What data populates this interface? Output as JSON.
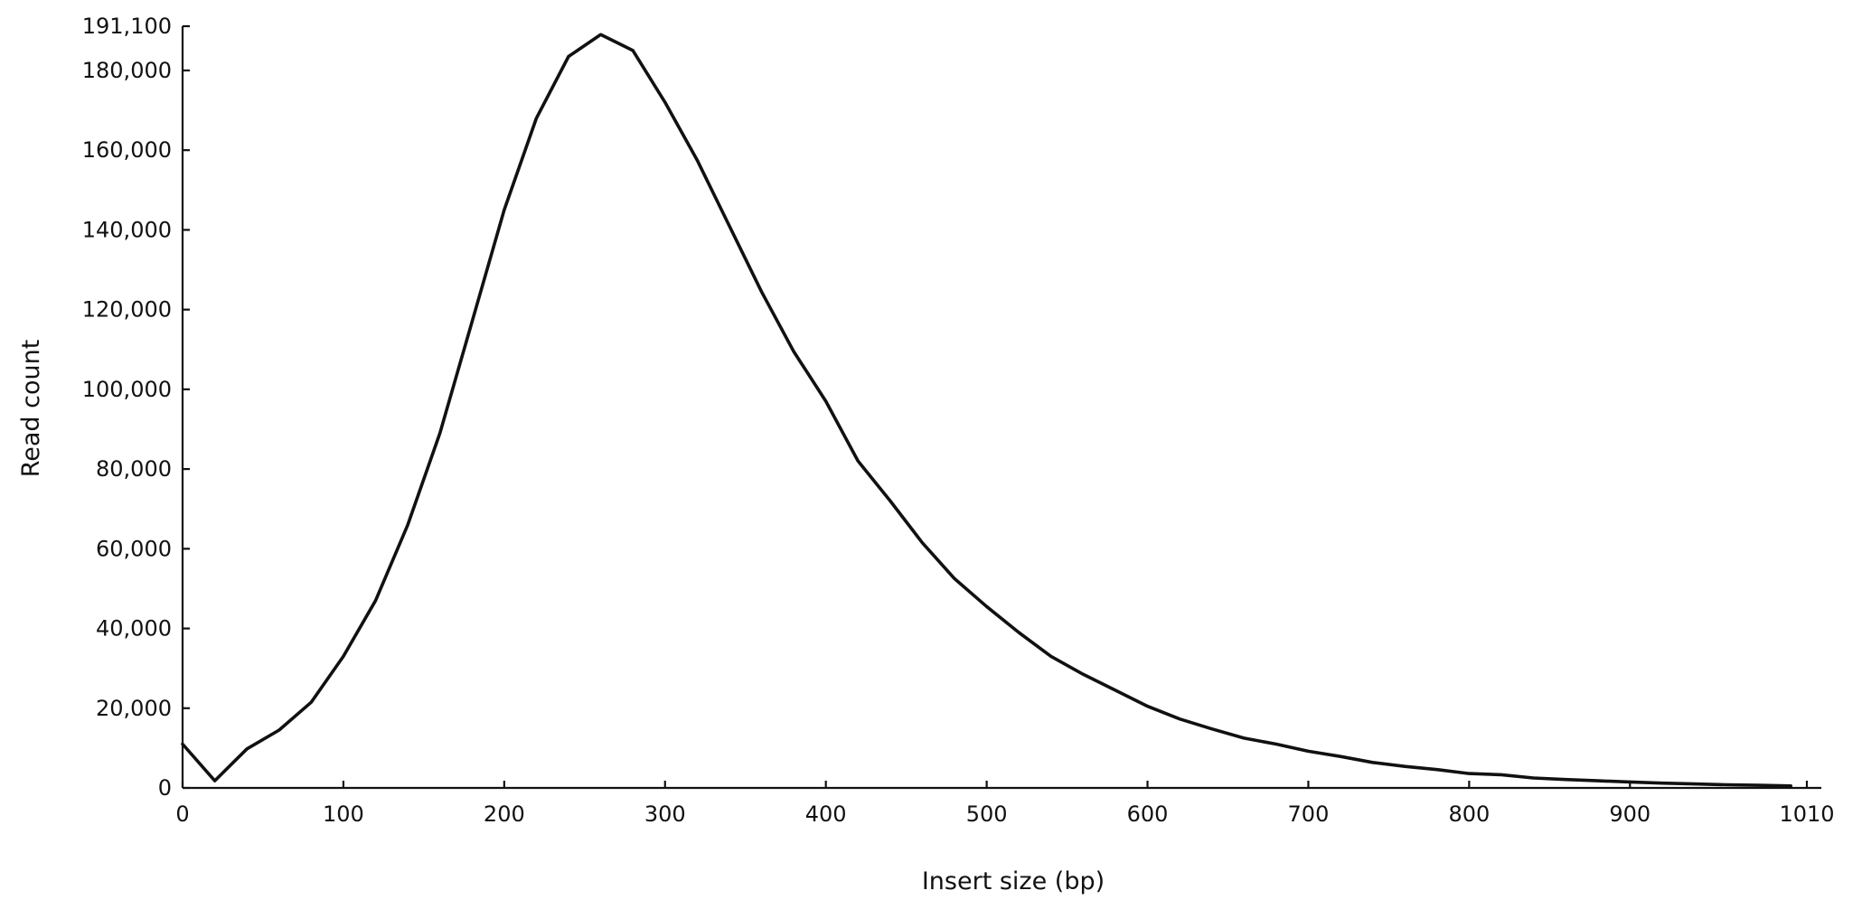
{
  "chart_data": {
    "type": "line",
    "title": "",
    "xlabel": "Insert size (bp)",
    "ylabel": "Read count",
    "xlim": [
      0,
      1010
    ],
    "ylim": [
      0,
      191100
    ],
    "x_ticks": [
      0,
      100,
      200,
      300,
      400,
      500,
      600,
      700,
      800,
      900,
      1010
    ],
    "x_tick_labels": [
      "0",
      "100",
      "200",
      "300",
      "400",
      "500",
      "600",
      "700",
      "800",
      "900",
      "1010"
    ],
    "y_ticks": [
      0,
      20000,
      40000,
      60000,
      80000,
      100000,
      120000,
      140000,
      160000,
      180000,
      191100
    ],
    "y_tick_labels": [
      "0",
      "20,000",
      "40,000",
      "60,000",
      "80,000",
      "100,000",
      "120,000",
      "140,000",
      "160,000",
      "180,000",
      "191,100"
    ],
    "grid": false,
    "legend": "none",
    "series": [
      {
        "color": "#111111",
        "x": [
          0,
          20,
          40,
          60,
          80,
          100,
          120,
          140,
          160,
          180,
          200,
          220,
          240,
          260,
          280,
          300,
          320,
          340,
          360,
          380,
          400,
          420,
          440,
          460,
          480,
          500,
          520,
          540,
          560,
          580,
          600,
          620,
          640,
          660,
          680,
          700,
          720,
          740,
          760,
          780,
          800,
          820,
          840,
          860,
          880,
          900,
          920,
          940,
          960,
          980,
          1000
        ],
        "values": [
          11000,
          1800,
          9800,
          14500,
          21500,
          33000,
          47000,
          66000,
          89000,
          117000,
          145000,
          168000,
          183500,
          189000,
          185000,
          172000,
          157500,
          141000,
          124500,
          109500,
          97000,
          82000,
          72000,
          61500,
          52500,
          45500,
          39000,
          33000,
          28500,
          24500,
          20500,
          17300,
          14800,
          12500,
          11000,
          9200,
          7900,
          6400,
          5400,
          4600,
          3600,
          3300,
          2500,
          2100,
          1800,
          1500,
          1200,
          1000,
          800,
          650,
          500
        ]
      }
    ]
  }
}
